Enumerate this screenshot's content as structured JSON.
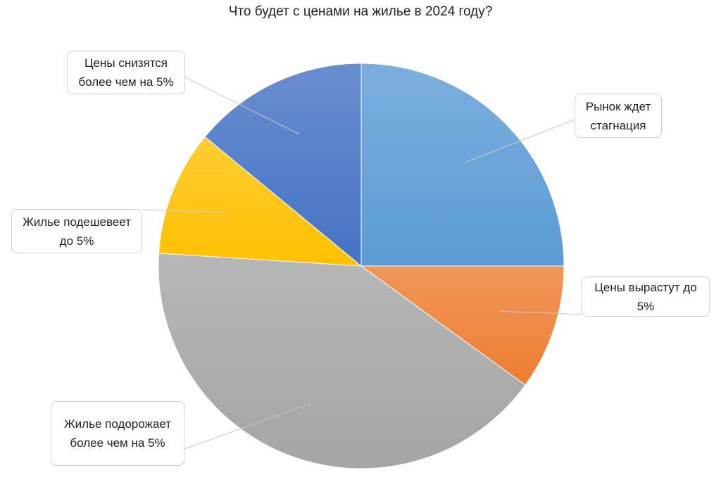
{
  "chart_data": {
    "type": "pie",
    "title": "Что будет с ценами на жилье в 2024 году?",
    "categories": [
      "Рынок ждет стагнация",
      "Цены вырастут до 5%",
      "Жилье подорожает более чем на 5%",
      "Жилье подешевеет до 5%",
      "Цены снизятся более чем на 5%"
    ],
    "values": [
      25,
      10,
      41,
      10,
      14
    ],
    "colors": [
      "#5b9bd5",
      "#ed7d31",
      "#a5a5a5",
      "#ffc000",
      "#4472c4"
    ]
  }
}
